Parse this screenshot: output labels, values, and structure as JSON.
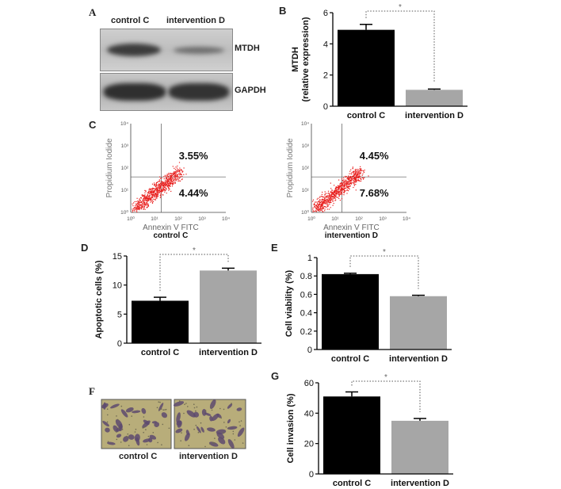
{
  "panels": {
    "A": {
      "label": "A",
      "col_labels": [
        "control C",
        "intervention D"
      ],
      "row_labels": [
        "MTDH",
        "GAPDH"
      ]
    },
    "C": {
      "label": "C",
      "plots": [
        {
          "name": "control C",
          "upper_right": "3.55%",
          "lower_right": "4.44%"
        },
        {
          "name": "intervention D",
          "upper_right": "4.45%",
          "lower_right": "7.68%"
        }
      ],
      "xlabel": "Annexin V  FITC",
      "ylabel": "Propidium Iodide",
      "ticks": [
        "10⁰",
        "10¹",
        "10²",
        "10³",
        "10⁴"
      ]
    },
    "F": {
      "label": "F",
      "captions": [
        "control C",
        "intervention D"
      ]
    }
  },
  "colors": {
    "control": "#000000",
    "intervention": "#a6a6a6",
    "dots": "#e8201e"
  },
  "chart_data": [
    {
      "id": "B",
      "label": "B",
      "type": "bar",
      "categories": [
        "control C",
        "intervention D"
      ],
      "values": [
        4.9,
        1.05
      ],
      "errors": [
        0.35,
        0.05
      ],
      "ylabel": "MTDH\n(relative expression)",
      "ylim": [
        0,
        6
      ],
      "yticks": [
        0,
        2,
        4,
        6
      ],
      "significance": "*"
    },
    {
      "id": "D",
      "label": "D",
      "type": "bar",
      "categories": [
        "control C",
        "intervention D"
      ],
      "values": [
        7.3,
        12.5
      ],
      "errors": [
        0.6,
        0.4
      ],
      "ylabel": "Apoptotic cells (%)",
      "ylim": [
        0,
        15
      ],
      "yticks": [
        0,
        5,
        10,
        15
      ],
      "significance": "*"
    },
    {
      "id": "E",
      "label": "E",
      "type": "bar",
      "categories": [
        "control C",
        "intervention D"
      ],
      "values": [
        0.82,
        0.58
      ],
      "errors": [
        0.01,
        0.01
      ],
      "ylabel": "Cell viability (%)",
      "ylim": [
        0,
        1.0
      ],
      "yticks": [
        0,
        0.2,
        0.4,
        0.6,
        0.8,
        1.0
      ],
      "significance": "*"
    },
    {
      "id": "G",
      "label": "G",
      "type": "bar",
      "categories": [
        "control C",
        "intervention D"
      ],
      "values": [
        51,
        35
      ],
      "errors": [
        3,
        1.5
      ],
      "ylabel": "Cell invasion (%)",
      "ylim": [
        0,
        60
      ],
      "yticks": [
        0,
        20,
        40,
        60
      ],
      "significance": "*"
    }
  ]
}
